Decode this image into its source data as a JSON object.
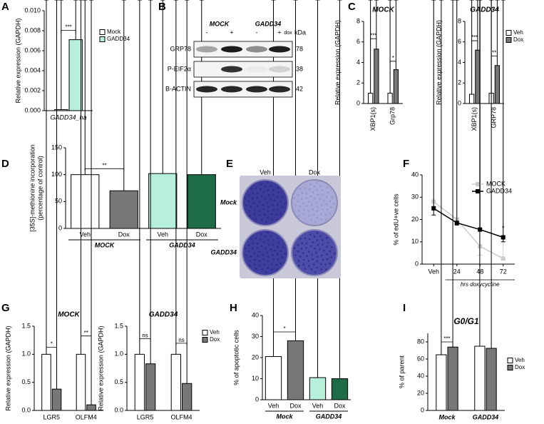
{
  "chart_data": [
    {
      "type": "bar",
      "panel": "A",
      "ylabel": "Relative expression (GAPDH)",
      "categories": [
        "GADD34_ha"
      ],
      "series": [
        {
          "name": "Mock",
          "color": "#ffffff",
          "values": [
            0.0001
          ],
          "errors": [
            3e-05
          ]
        },
        {
          "name": "GADD34",
          "color": "#b7f0da",
          "values": [
            0.0071
          ],
          "errors": [
            0.0005
          ]
        }
      ],
      "ylim": [
        0,
        0.01
      ],
      "yticks": [
        {
          "value": 0,
          "label": "0.000"
        },
        {
          "value": 0.002,
          "label": "0.002"
        },
        {
          "value": 0.004,
          "label": "0.004"
        },
        {
          "value": 0.006,
          "label": "0.006"
        },
        {
          "value": 0.008,
          "label": "0.008"
        },
        {
          "value": 0.01,
          "label": "0.010"
        }
      ],
      "annotations": [
        "***"
      ],
      "legend": true
    },
    {
      "type": "bar",
      "panel": "C",
      "title": "MOCK",
      "ylabel": "Relative expression (GAPDH)",
      "categories": [
        "XBP1(s)",
        "Grp78"
      ],
      "series": [
        {
          "color": "#ffffff",
          "values": [
            1,
            1
          ],
          "errors": [
            0.05,
            0.2
          ]
        },
        {
          "color": "#777777",
          "values": [
            5.3,
            3.3
          ],
          "errors": [
            0.6,
            0.4
          ]
        }
      ],
      "ylim": [
        0,
        8
      ],
      "yticks": [
        0,
        2,
        4,
        6,
        8
      ],
      "annotations": [
        "***",
        "*"
      ],
      "xtick_rotation": 90
    },
    {
      "type": "bar",
      "title": "GADD34",
      "ylabel": "Relative expression (GAPDH)",
      "categories": [
        "XBP1(s)",
        "GRP78"
      ],
      "series": [
        {
          "name": "Veh",
          "color": "#ffffff",
          "values": [
            0.9,
            1.0
          ],
          "errors": [
            0.2,
            0.1
          ]
        },
        {
          "name": "Dox",
          "color": "#777777",
          "values": [
            5.2,
            3.7
          ],
          "errors": [
            0.5,
            0.5
          ]
        }
      ],
      "ylim": [
        0,
        8
      ],
      "yticks": [
        0,
        2,
        4,
        6,
        8
      ],
      "annotations": [
        "***",
        "**"
      ],
      "xtick_rotation": 90,
      "legend": true
    },
    {
      "type": "bar",
      "panel": "D",
      "ylabel": [
        "[35S]-methionine incorporation",
        "(percentage of control)"
      ],
      "categories": [
        "Veh",
        "Dox",
        "Veh",
        "Dox"
      ],
      "groups": [
        "MOCK",
        "GADD34"
      ],
      "values": [
        100,
        70,
        102,
        100
      ],
      "errors": [
        0.5,
        3,
        2,
        3
      ],
      "colors": [
        "#ffffff",
        "#777777",
        "#b7f0da",
        "#1e6b47"
      ],
      "ylim": [
        0,
        150
      ],
      "yticks": [
        0,
        50,
        100,
        150
      ],
      "annotations": [
        "**"
      ]
    },
    {
      "type": "line",
      "panel": "F",
      "ylabel": "% of edU+ve cells",
      "xlabel": "hrs doxycycline",
      "categories": [
        "Veh",
        "24",
        "48",
        "72"
      ],
      "series": [
        {
          "name": "MOCK",
          "color": "#cccccc",
          "values": [
            28,
            20,
            8,
            2.5
          ],
          "errors": [
            2,
            2,
            4,
            0.5
          ]
        },
        {
          "name": "GADD34",
          "color": "#000000",
          "values": [
            25,
            18.5,
            15.5,
            12
          ],
          "errors": [
            3,
            1,
            0.6,
            2
          ]
        }
      ],
      "ylim": [
        0,
        40
      ],
      "yticks": [
        0,
        10,
        20,
        30,
        40
      ],
      "annotations": [
        "*"
      ],
      "legend": true
    },
    {
      "type": "bar",
      "panel": "G",
      "title": "MOCK",
      "ylabel": "Relative expression (GAPDH)",
      "categories": [
        "LGR5",
        "OLFM4"
      ],
      "series": [
        {
          "color": "#ffffff",
          "values": [
            1.0,
            1.0
          ],
          "errors": [
            0.05,
            0.25
          ]
        },
        {
          "color": "#777777",
          "values": [
            0.38,
            0.1
          ],
          "errors": [
            0.04,
            0.03
          ]
        }
      ],
      "ylim": [
        0,
        1.5
      ],
      "yticks": [
        {
          "value": 0,
          "label": "0.0"
        },
        0.5,
        {
          "value": 1,
          "label": "1.0"
        },
        1.5
      ],
      "annotations": [
        "*",
        "**"
      ]
    },
    {
      "type": "bar",
      "title": "GADD34",
      "ylabel": "Relative expression (GAPDH)",
      "categories": [
        "LGR5",
        "OLFM4"
      ],
      "series": [
        {
          "name": "Veh",
          "color": "#ffffff",
          "values": [
            1.0,
            1.0
          ],
          "errors": [
            0.2,
            0.12
          ]
        },
        {
          "name": "Dox",
          "color": "#777777",
          "values": [
            0.83,
            0.48
          ],
          "errors": [
            0.1,
            0.08
          ]
        }
      ],
      "ylim": [
        0,
        1.5
      ],
      "yticks": [
        {
          "value": 0,
          "label": "0.0"
        },
        0.5,
        {
          "value": 1,
          "label": "1.0"
        },
        1.5
      ],
      "annotations": [
        "ns",
        "ns"
      ],
      "legend": true
    },
    {
      "type": "bar",
      "panel": "H",
      "ylabel": "% of apoptotic cells",
      "categories": [
        "Veh",
        "Dox",
        "Veh",
        "Dox"
      ],
      "groups": [
        "Mock",
        "GADD34"
      ],
      "values": [
        20.5,
        28,
        10.5,
        10
      ],
      "errors": [
        2,
        1.5,
        2.5,
        0.5
      ],
      "colors": [
        "#ffffff",
        "#777777",
        "#b7f0da",
        "#1e6b47"
      ],
      "ylim": [
        0,
        40
      ],
      "yticks": [
        0,
        10,
        20,
        30,
        40
      ],
      "annotations": [
        "*"
      ]
    },
    {
      "type": "bar",
      "panel": "I",
      "title": "G0/G1",
      "ylabel": "% of parent",
      "categories": [
        "Mock",
        "GADD34"
      ],
      "series": [
        {
          "name": "Veh",
          "color": "#ffffff",
          "values": [
            65,
            75
          ],
          "errors": [
            0.5,
            1
          ]
        },
        {
          "name": "Dox",
          "color": "#777777",
          "values": [
            74,
            72.5
          ],
          "errors": [
            1,
            0.8
          ]
        }
      ],
      "ylim": [
        0,
        90
      ],
      "yticks": [
        0,
        20,
        40,
        60,
        80
      ],
      "annotations": [
        "***"
      ],
      "legend": true
    }
  ],
  "blot": {
    "panel": "B",
    "groups": [
      "MOCK",
      "GADD34"
    ],
    "lanes": [
      "-",
      "+",
      "-",
      "+"
    ],
    "treatment": "dox",
    "unit": "kDa",
    "rows": [
      {
        "label": "GRP78",
        "kda": 78
      },
      {
        "label": "P-EIF2α",
        "kda": 38
      },
      {
        "label": "B-ACTIN",
        "kda": 42
      }
    ]
  },
  "plate": {
    "panel": "E",
    "columns": [
      "Veh",
      "Dox"
    ],
    "rows": [
      "Mock",
      "GADD34"
    ]
  }
}
